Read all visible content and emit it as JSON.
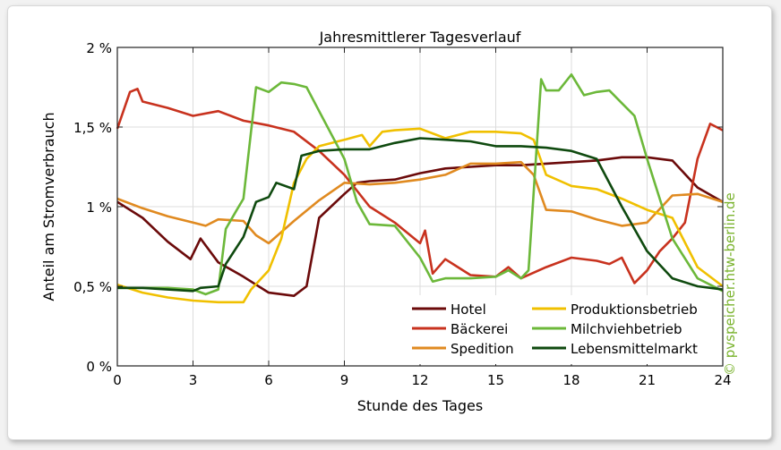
{
  "chart_data": {
    "type": "line",
    "title": "Jahresmittlerer Tagesverlauf",
    "xlabel": "Stunde des Tages",
    "ylabel": "Anteil am Stromverbrauch",
    "xlim": [
      0,
      24
    ],
    "ylim": [
      0,
      2
    ],
    "xticks": [
      0,
      3,
      6,
      9,
      12,
      15,
      18,
      21,
      24
    ],
    "xtick_labels": [
      "0",
      "3",
      "6",
      "9",
      "12",
      "15",
      "18",
      "21",
      "24"
    ],
    "yticks": [
      0,
      0.5,
      1,
      1.5,
      2
    ],
    "ytick_labels": [
      "0 %",
      "0,5 %",
      "1 %",
      "1,5 %",
      "2 %"
    ],
    "grid": true,
    "legend_position": "bottom-right",
    "series": [
      {
        "name": "Hotel",
        "color": "#6b0a0a",
        "x": [
          0,
          1,
          2,
          2.9,
          3.3,
          4,
          5,
          6,
          7,
          7.5,
          8,
          9,
          9.5,
          10,
          11,
          12,
          13,
          14,
          15,
          16,
          17,
          18,
          19,
          20,
          21,
          22,
          23,
          24
        ],
        "y": [
          1.03,
          0.93,
          0.78,
          0.67,
          0.8,
          0.65,
          0.56,
          0.46,
          0.44,
          0.5,
          0.93,
          1.08,
          1.15,
          1.16,
          1.17,
          1.21,
          1.24,
          1.25,
          1.26,
          1.26,
          1.27,
          1.28,
          1.29,
          1.31,
          1.31,
          1.29,
          1.12,
          1.03
        ]
      },
      {
        "name": "Bäckerei",
        "color": "#c8321e",
        "x": [
          0,
          0.5,
          0.8,
          1,
          2,
          3,
          4,
          5,
          6,
          7,
          8,
          9,
          10,
          11,
          12,
          12.2,
          12.5,
          13,
          14,
          15,
          15.5,
          16,
          17,
          18,
          19,
          19.5,
          20,
          20.5,
          21,
          21.5,
          22,
          22.5,
          23,
          23.5,
          24
        ],
        "y": [
          1.49,
          1.72,
          1.74,
          1.66,
          1.62,
          1.57,
          1.6,
          1.54,
          1.51,
          1.47,
          1.35,
          1.2,
          1.0,
          0.9,
          0.77,
          0.85,
          0.58,
          0.67,
          0.57,
          0.56,
          0.62,
          0.55,
          0.62,
          0.68,
          0.66,
          0.64,
          0.68,
          0.52,
          0.6,
          0.72,
          0.8,
          0.9,
          1.3,
          1.52,
          1.48
        ]
      },
      {
        "name": "Spedition",
        "color": "#e08a20",
        "x": [
          0,
          1,
          2,
          3,
          3.5,
          4,
          5,
          5.5,
          6,
          7,
          8,
          9,
          10,
          11,
          12,
          13,
          14,
          15,
          16,
          16.5,
          17,
          18,
          19,
          20,
          21,
          22,
          23,
          24
        ],
        "y": [
          1.05,
          0.99,
          0.94,
          0.9,
          0.88,
          0.92,
          0.91,
          0.82,
          0.77,
          0.91,
          1.04,
          1.15,
          1.14,
          1.15,
          1.17,
          1.2,
          1.27,
          1.27,
          1.28,
          1.2,
          0.98,
          0.97,
          0.92,
          0.88,
          0.9,
          1.07,
          1.08,
          1.03
        ]
      },
      {
        "name": "Produktionsbetrieb",
        "color": "#f0c000",
        "x": [
          0,
          1,
          2,
          3,
          4,
          5,
          5.3,
          6,
          6.5,
          7,
          7.5,
          8,
          9,
          9.7,
          10,
          10.5,
          11,
          12,
          13,
          13.5,
          14,
          15,
          16,
          16.5,
          17,
          18,
          19,
          20,
          21,
          22,
          23,
          24
        ],
        "y": [
          0.51,
          0.46,
          0.43,
          0.41,
          0.4,
          0.4,
          0.48,
          0.6,
          0.8,
          1.15,
          1.3,
          1.38,
          1.42,
          1.45,
          1.38,
          1.47,
          1.48,
          1.49,
          1.43,
          1.45,
          1.47,
          1.47,
          1.46,
          1.42,
          1.2,
          1.13,
          1.11,
          1.05,
          0.98,
          0.93,
          0.62,
          0.5
        ]
      },
      {
        "name": "Milchviehbetrieb",
        "color": "#6cb83a",
        "x": [
          0,
          1,
          2,
          3,
          3.5,
          4,
          4.3,
          4.7,
          5,
          5.5,
          6,
          6.5,
          7,
          7.5,
          8,
          9,
          9.5,
          10,
          11,
          12,
          12.5,
          13,
          14,
          15,
          15.5,
          16,
          16.3,
          16.8,
          17,
          17.5,
          18,
          18.5,
          19,
          19.5,
          20,
          20.5,
          21,
          22,
          23,
          24
        ],
        "y": [
          0.49,
          0.49,
          0.49,
          0.48,
          0.45,
          0.48,
          0.86,
          0.97,
          1.05,
          1.75,
          1.72,
          1.78,
          1.77,
          1.75,
          1.6,
          1.3,
          1.03,
          0.89,
          0.88,
          0.68,
          0.53,
          0.55,
          0.55,
          0.56,
          0.6,
          0.55,
          0.6,
          1.8,
          1.73,
          1.73,
          1.83,
          1.7,
          1.72,
          1.73,
          1.65,
          1.57,
          1.3,
          0.8,
          0.55,
          0.47
        ]
      },
      {
        "name": "Lebensmittelmarkt",
        "color": "#0f4a0f",
        "x": [
          0,
          1,
          2,
          3,
          3.3,
          4,
          4.3,
          5,
          5.5,
          6,
          6.3,
          7,
          7.3,
          8,
          9,
          10,
          11,
          12,
          13,
          14,
          15,
          16,
          17,
          18,
          19,
          20,
          21,
          22,
          23,
          24
        ],
        "y": [
          0.49,
          0.49,
          0.48,
          0.47,
          0.49,
          0.5,
          0.64,
          0.81,
          1.03,
          1.06,
          1.15,
          1.11,
          1.32,
          1.35,
          1.36,
          1.36,
          1.4,
          1.43,
          1.42,
          1.41,
          1.38,
          1.38,
          1.37,
          1.35,
          1.3,
          1.0,
          0.72,
          0.55,
          0.5,
          0.48
        ]
      }
    ]
  },
  "watermark": "© pvspeicher.htw-berlin.de"
}
